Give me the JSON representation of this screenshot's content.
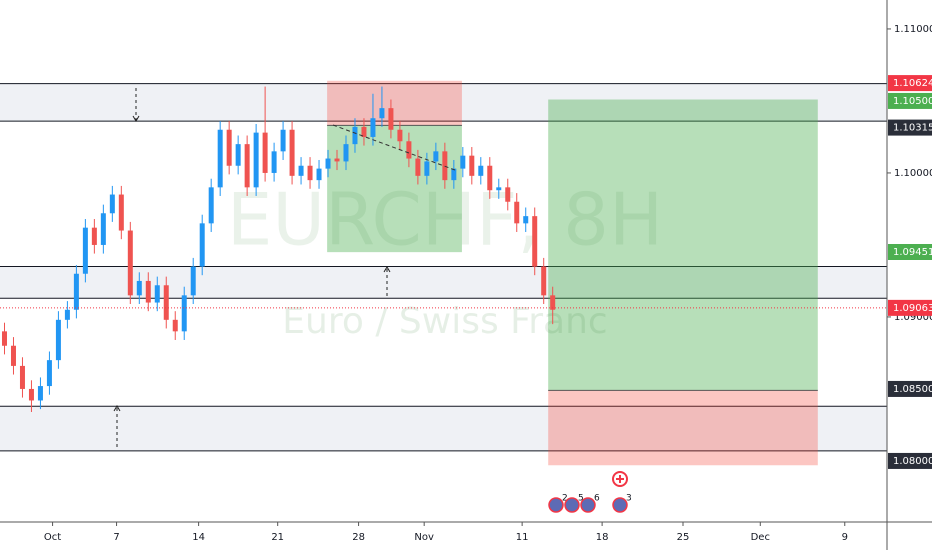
{
  "chart_data": {
    "type": "candlestick",
    "symbol_watermark": "EURCHF, 8H",
    "description_watermark": "Euro / Swiss Franc",
    "up_color": "#2196f3",
    "down_color": "#ef5350",
    "candles": [
      [
        1.089,
        1.0896,
        1.0874,
        1.088
      ],
      [
        1.088,
        1.0886,
        1.086,
        1.0866
      ],
      [
        1.0866,
        1.0872,
        1.0844,
        1.085
      ],
      [
        1.085,
        1.0856,
        1.0834,
        1.0842
      ],
      [
        1.0842,
        1.0858,
        1.0836,
        1.0852
      ],
      [
        1.0852,
        1.0876,
        1.0846,
        1.087
      ],
      [
        1.087,
        1.0904,
        1.0864,
        1.0898
      ],
      [
        1.0898,
        1.0911,
        1.0892,
        1.0905
      ],
      [
        1.0905,
        1.0936,
        1.0899,
        1.093
      ],
      [
        1.093,
        1.0968,
        1.0924,
        1.0962
      ],
      [
        1.0962,
        1.0968,
        1.0944,
        1.095
      ],
      [
        1.095,
        1.0978,
        1.0944,
        1.0972
      ],
      [
        1.0972,
        1.0991,
        1.0966,
        1.0985
      ],
      [
        1.0985,
        1.0991,
        1.0954,
        1.096
      ],
      [
        1.096,
        1.0966,
        1.0909,
        1.0915
      ],
      [
        1.0915,
        1.0931,
        1.0909,
        1.0925
      ],
      [
        1.0925,
        1.0931,
        1.0904,
        1.091
      ],
      [
        1.091,
        1.0928,
        1.0904,
        1.0922
      ],
      [
        1.0922,
        1.0928,
        1.0892,
        1.0898
      ],
      [
        1.0898,
        1.0904,
        1.0884,
        1.089
      ],
      [
        1.089,
        1.0921,
        1.0884,
        1.0915
      ],
      [
        1.0915,
        1.0941,
        1.0909,
        1.0935
      ],
      [
        1.0935,
        1.0971,
        1.0929,
        1.0965
      ],
      [
        1.0965,
        1.0996,
        1.0959,
        1.099
      ],
      [
        1.099,
        1.1036,
        1.0984,
        1.103
      ],
      [
        1.103,
        1.1036,
        1.0999,
        1.1005
      ],
      [
        1.1005,
        1.1026,
        1.0999,
        1.102
      ],
      [
        1.102,
        1.1026,
        1.0984,
        1.099
      ],
      [
        1.099,
        1.1034,
        1.0984,
        1.1028
      ],
      [
        1.1028,
        1.106,
        1.0994,
        1.1
      ],
      [
        1.1,
        1.1021,
        1.0994,
        1.1015
      ],
      [
        1.1015,
        1.1036,
        1.1009,
        1.103
      ],
      [
        1.103,
        1.1036,
        1.0992,
        1.0998
      ],
      [
        1.0998,
        1.1011,
        1.0992,
        1.1005
      ],
      [
        1.1005,
        1.1011,
        1.0989,
        1.0995
      ],
      [
        1.0995,
        1.1009,
        1.0989,
        1.1003
      ],
      [
        1.1003,
        1.1016,
        1.0997,
        1.101
      ],
      [
        1.101,
        1.1016,
        1.1002,
        1.1008
      ],
      [
        1.1008,
        1.1026,
        1.1002,
        1.102
      ],
      [
        1.102,
        1.1038,
        1.1014,
        1.1032
      ],
      [
        1.1032,
        1.1038,
        1.1019,
        1.1025
      ],
      [
        1.1025,
        1.1055,
        1.1019,
        1.1038
      ],
      [
        1.1038,
        1.106,
        1.1032,
        1.1045
      ],
      [
        1.1045,
        1.1051,
        1.1024,
        1.103
      ],
      [
        1.103,
        1.1036,
        1.1016,
        1.1022
      ],
      [
        1.1022,
        1.1028,
        1.1004,
        1.101
      ],
      [
        1.101,
        1.1016,
        1.0992,
        1.0998
      ],
      [
        1.0998,
        1.1014,
        1.0992,
        1.1008
      ],
      [
        1.1008,
        1.1021,
        1.1002,
        1.1015
      ],
      [
        1.1015,
        1.1021,
        1.0989,
        1.0995
      ],
      [
        1.0995,
        1.1009,
        1.0989,
        1.1003
      ],
      [
        1.1003,
        1.1018,
        1.0997,
        1.1012
      ],
      [
        1.1012,
        1.1018,
        1.0992,
        1.0998
      ],
      [
        1.0998,
        1.1011,
        1.0992,
        1.1005
      ],
      [
        1.1005,
        1.1011,
        1.0982,
        1.0988
      ],
      [
        1.0988,
        1.0996,
        1.0982,
        1.099
      ],
      [
        1.099,
        1.0996,
        1.0974,
        1.098
      ],
      [
        1.098,
        1.0986,
        1.0959,
        1.0965
      ],
      [
        1.0965,
        1.0976,
        1.0959,
        1.097
      ],
      [
        1.097,
        1.0976,
        1.0929,
        1.0935
      ],
      [
        1.0935,
        1.0941,
        1.0909,
        1.0915
      ],
      [
        1.0915,
        1.0921,
        1.0895,
        1.0905
      ]
    ],
    "xlim": [
      -0.5,
      98.2
    ],
    "xticks": [
      {
        "value": 5.35,
        "label": "Oct"
      },
      {
        "value": 12.47,
        "label": "7"
      },
      {
        "value": 21.6,
        "label": "14"
      },
      {
        "value": 30.4,
        "label": "21"
      },
      {
        "value": 39.4,
        "label": "28"
      },
      {
        "value": 46.7,
        "label": "Nov"
      },
      {
        "value": 57.6,
        "label": "11"
      },
      {
        "value": 66.5,
        "label": "18"
      },
      {
        "value": 75.5,
        "label": "25"
      },
      {
        "value": 84.1,
        "label": "Dec"
      },
      {
        "value": 93.5,
        "label": "9"
      }
    ],
    "ylim": [
      1.07576,
      1.11201
    ],
    "yticks": [
      {
        "value": 1.11,
        "label": "1.11000"
      },
      {
        "value": 1.1,
        "label": "1.10000"
      },
      {
        "value": 1.09,
        "label": "1.09000"
      }
    ],
    "levels": [
      1.1062,
      1.1036,
      1.0935,
      1.0913,
      1.0838,
      1.0807
    ],
    "positions": [
      {
        "start": 35.9,
        "end": 50.9,
        "entry": 1.1033,
        "stop": 1.1064,
        "target": 1.0945
      },
      {
        "start": 60.5,
        "end": 90.5,
        "entry": 1.0849,
        "stop": 1.0797,
        "target": 1.1051
      }
    ],
    "price_labels": [
      {
        "value": 1.10624,
        "label": "1.10624",
        "color": "#f23645"
      },
      {
        "value": 1.105,
        "label": "1.10500",
        "color": "#4caf50"
      },
      {
        "value": 1.10315,
        "label": "1.10315",
        "color": "#2a2e39"
      },
      {
        "value": 1.09451,
        "label": "1.09451",
        "color": "#4caf50"
      },
      {
        "value": 1.09063,
        "label": "1.09063",
        "color": "#f23645",
        "line": "dotted"
      },
      {
        "value": 1.085,
        "label": "1.08500",
        "color": "#2a2e39"
      },
      {
        "value": 1.08,
        "label": "1.08000",
        "color": "#2a2e39"
      }
    ],
    "event_counts": [
      2,
      5,
      6,
      3
    ]
  }
}
